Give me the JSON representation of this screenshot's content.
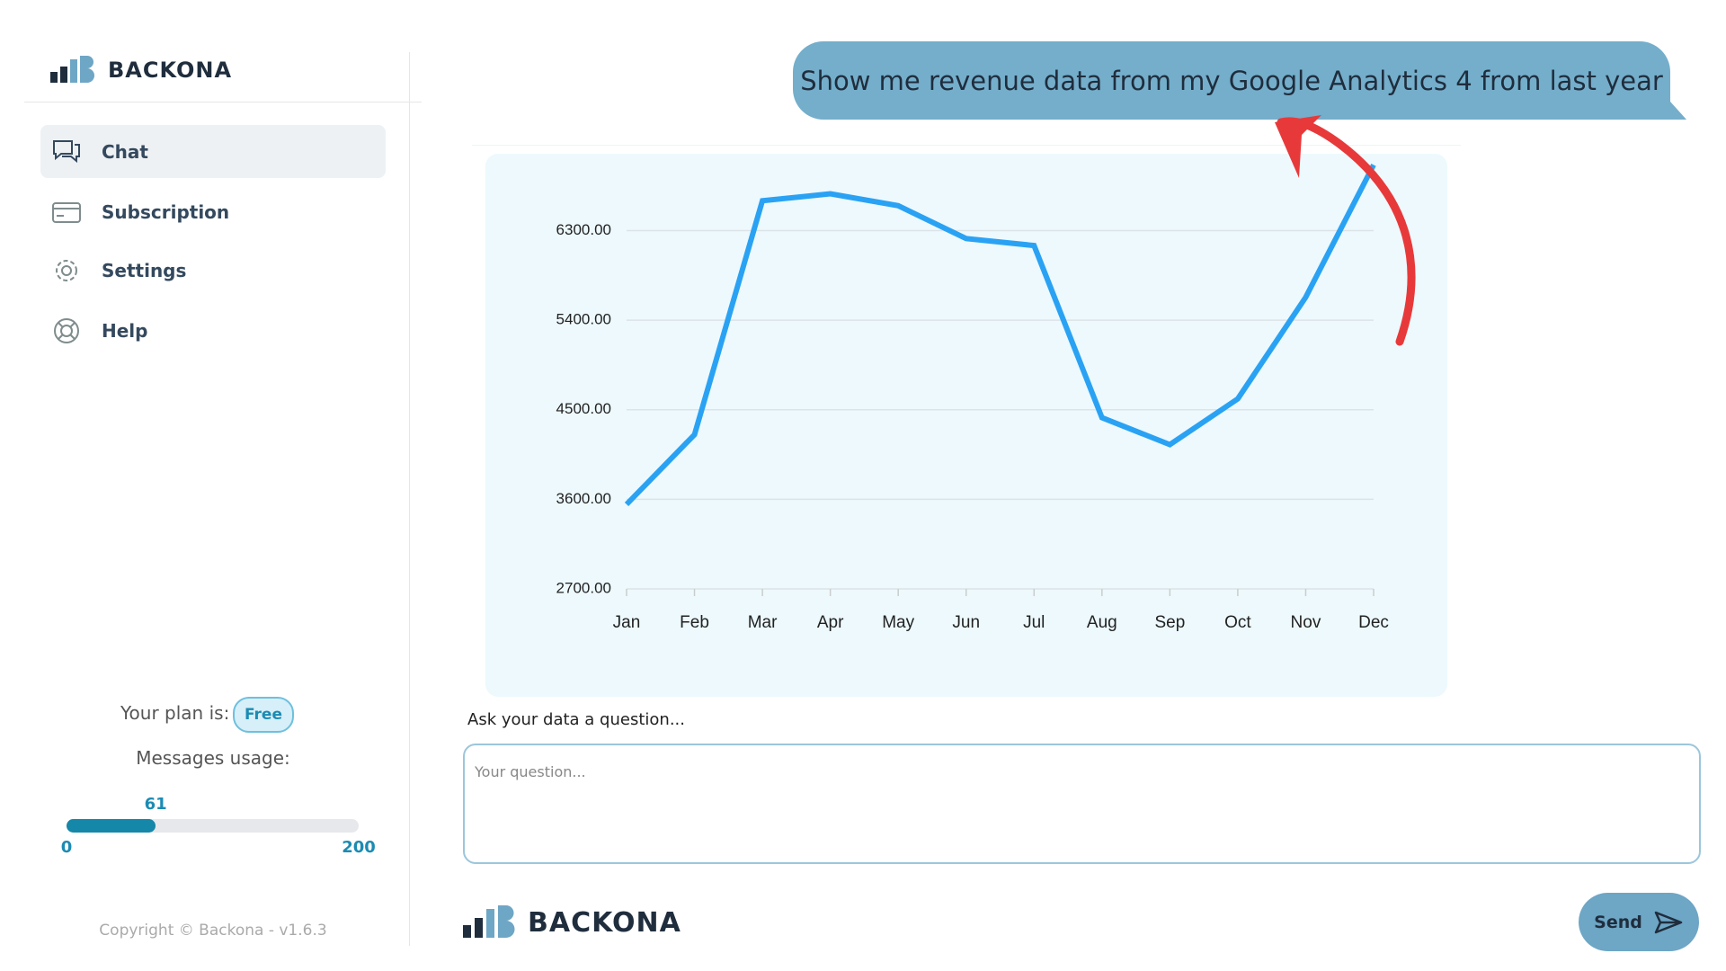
{
  "sidebar": {
    "brand": "BACKONA",
    "nav": [
      "Chat",
      "Subscription",
      "Settings",
      "Help"
    ],
    "plan": {
      "label": "Your plan is:",
      "value": "Free"
    },
    "usage": {
      "label": "Messages usage:",
      "value": 61,
      "min": 0,
      "max": 200
    },
    "copyright": "Copyright © Backona - v1.6.3"
  },
  "message": "Show me revenue data from my Google Analytics 4 from last year",
  "chart_data": {
    "type": "line",
    "categories": [
      "Jan",
      "Feb",
      "Mar",
      "Apr",
      "May",
      "Jun",
      "Jul",
      "Aug",
      "Sep",
      "Oct",
      "Nov",
      "Dec"
    ],
    "values": [
      3550,
      4250,
      6600,
      6670,
      6550,
      6220,
      6150,
      4420,
      4150,
      4610,
      5630,
      6960
    ],
    "color": "#2aa2f4",
    "ylim": [
      2700,
      7000
    ],
    "yticks": [
      {
        "value": 2700,
        "label": "2700.00"
      },
      {
        "value": 3600,
        "label": "3600.00"
      },
      {
        "value": 4500,
        "label": "4500.00"
      },
      {
        "value": 5400,
        "label": "5400.00"
      },
      {
        "value": 6300,
        "label": "6300.00"
      }
    ],
    "grid": true
  },
  "input": {
    "label": "Ask your data a question...",
    "placeholder": "Your question...",
    "send": "Send"
  },
  "footer": {
    "brand": "BACKONA"
  }
}
